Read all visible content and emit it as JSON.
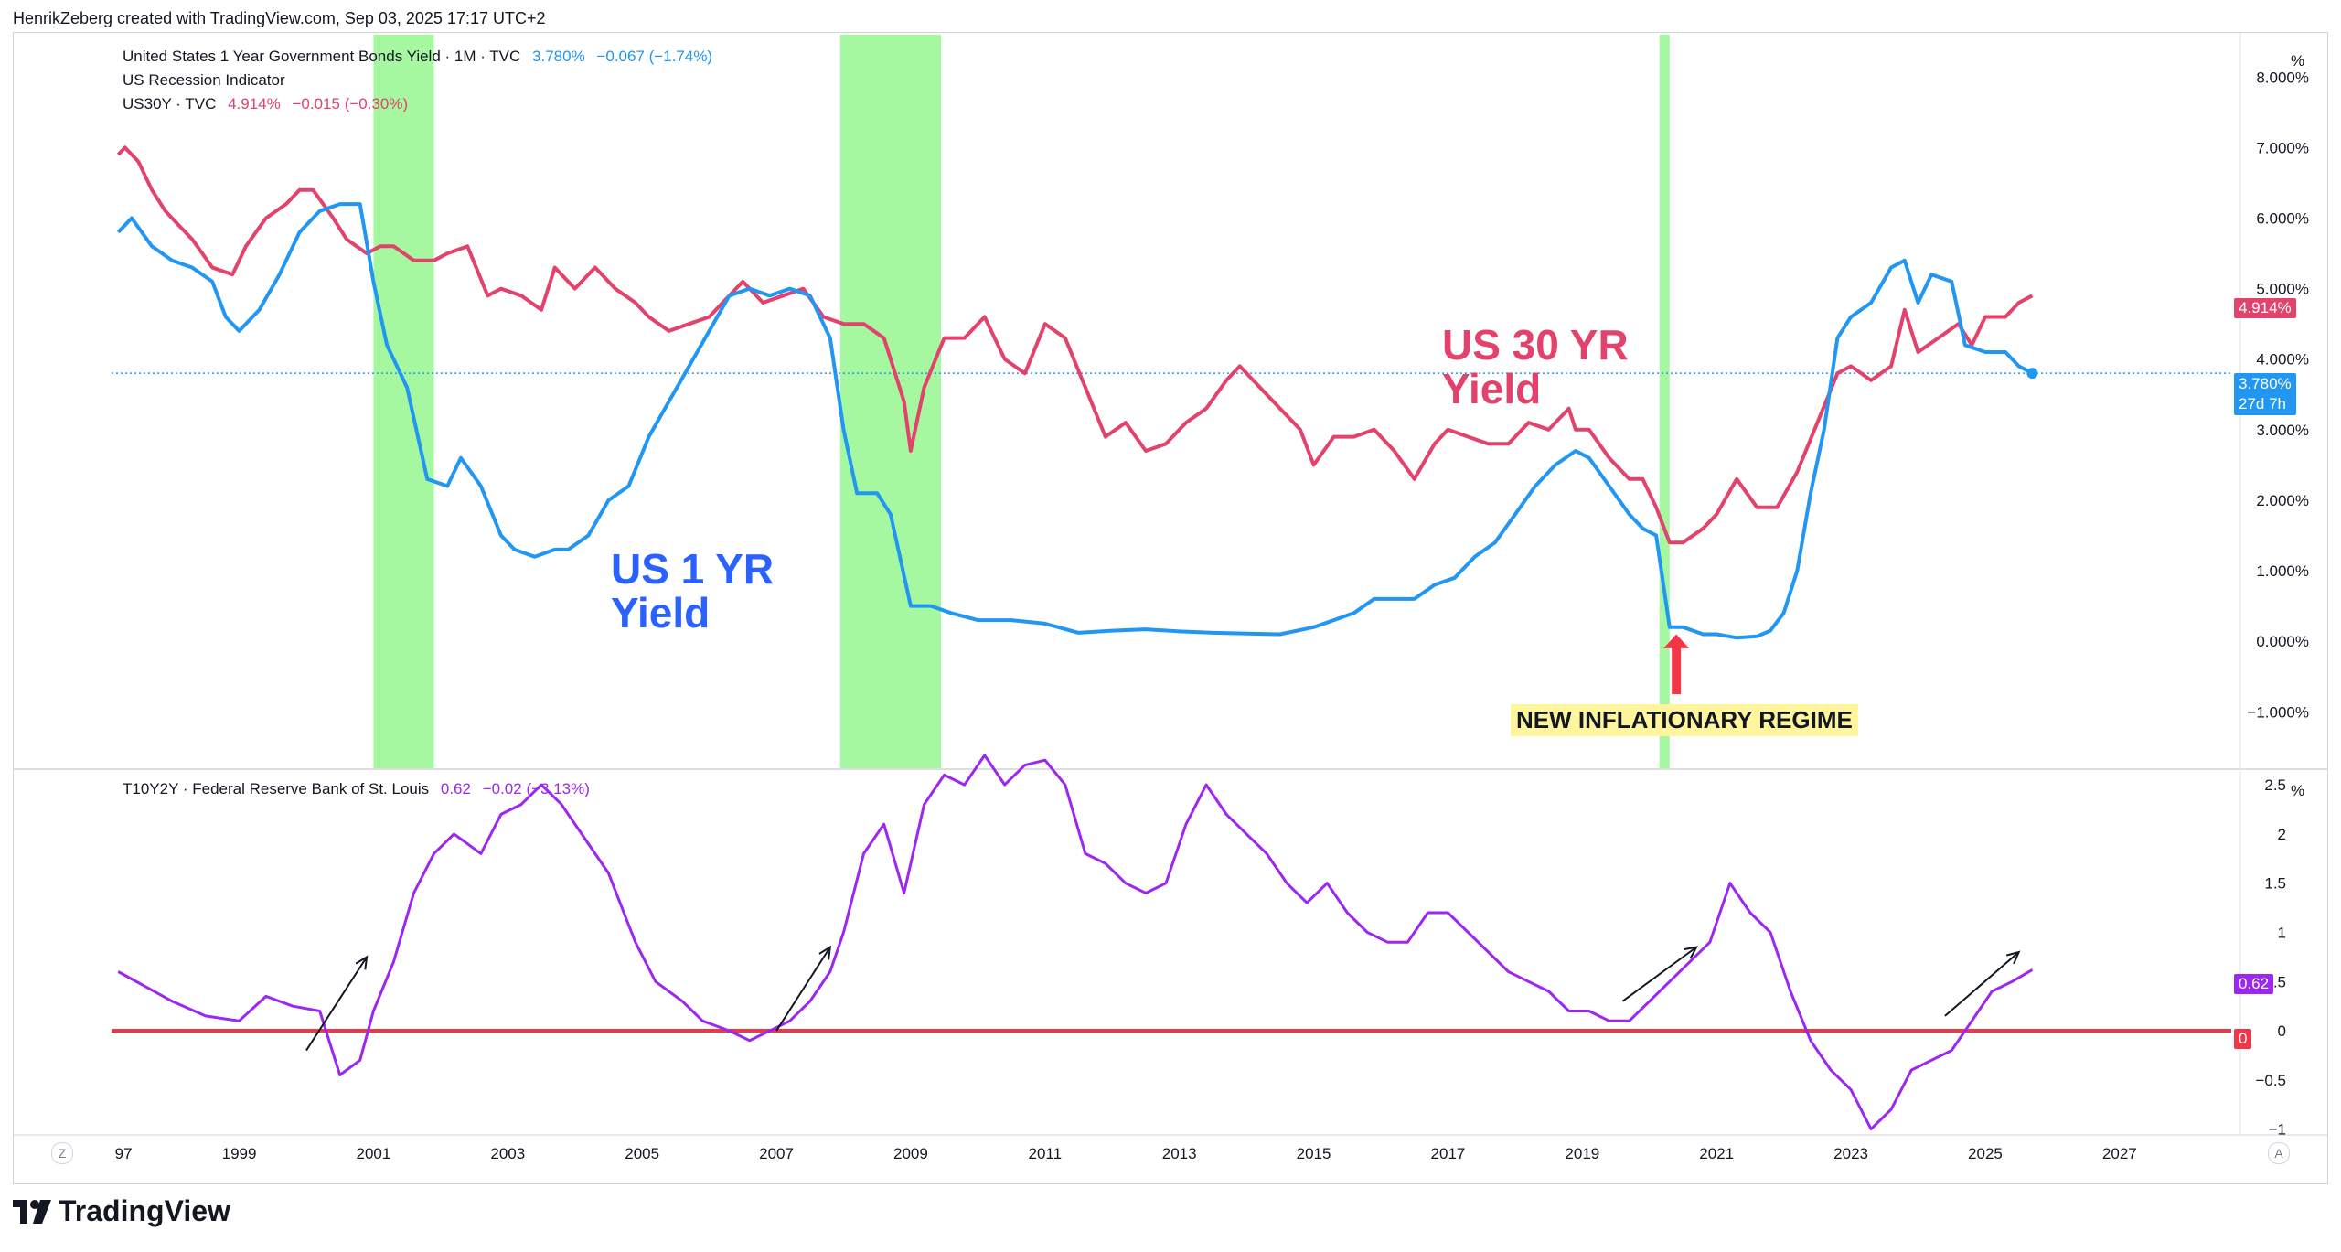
{
  "header": "HenrikZeberg created with TradingView.com, Sep 03, 2025 17:17 UTC+2",
  "top_legend": {
    "line1_name": "United States 1 Year Government Bonds Yield · 1M · TVC",
    "line1_value": "3.780%",
    "line1_change": "−0.067 (−1.74%)",
    "line2_name": "US Recession Indicator",
    "line3_name": "US30Y · TVC",
    "line3_value": "4.914%",
    "line3_change": "−0.015 (−0.30%)"
  },
  "bottom_legend": {
    "name": "T10Y2Y · Federal Reserve Bank of St. Louis",
    "value": "0.62",
    "change": "−0.02 (−3.13%)"
  },
  "annotations": {
    "us1yr_line1": "US 1 YR",
    "us1yr_line2": "Yield",
    "us30yr_line1": "US 30 YR",
    "us30yr_line2": "Yield",
    "regime": "NEW INFLATIONARY REGIME"
  },
  "badges": {
    "us30y": "4.914%",
    "us1y": "3.780%",
    "us1y_countdown": "27d 7h",
    "spread": "0.62",
    "zero": "0"
  },
  "footer": {
    "brand": "TradingView"
  },
  "corners": {
    "left": "Z",
    "right": "A"
  },
  "colors": {
    "us1y": "#2196f3",
    "us30y": "#e2426b",
    "spread": "#9c27f0",
    "recession": "#a5f8a0",
    "zero_line": "#f23645",
    "arrow_red": "#f23645"
  },
  "chart_data": [
    {
      "type": "line",
      "title": "",
      "ylabel": "%",
      "y_ticks": [
        "8.000%",
        "7.000%",
        "6.000%",
        "5.000%",
        "4.000%",
        "3.000%",
        "2.000%",
        "1.000%",
        "0.000%",
        "−1.000%"
      ],
      "x_ticks": [
        "97",
        "1999",
        "2001",
        "2003",
        "2005",
        "2007",
        "2009",
        "2011",
        "2013",
        "2015",
        "2017",
        "2019",
        "2021",
        "2023",
        "2025",
        "2027"
      ],
      "ylim": [
        -1.8,
        8.6
      ],
      "xlim": [
        1997.1,
        2028.5
      ],
      "recessions": [
        [
          2001.0,
          2001.9
        ],
        [
          2007.95,
          2009.45
        ],
        [
          2020.15,
          2020.3
        ]
      ],
      "series": [
        {
          "name": "US30Y",
          "x": [
            1997.2,
            1997.3,
            1997.5,
            1997.7,
            1997.9,
            1998.1,
            1998.3,
            1998.6,
            1998.9,
            1999.1,
            1999.4,
            1999.7,
            1999.9,
            2000.1,
            2000.4,
            2000.6,
            2000.9,
            2001.1,
            2001.3,
            2001.6,
            2001.9,
            2002.1,
            2002.4,
            2002.7,
            2002.9,
            2003.2,
            2003.5,
            2003.7,
            2004.0,
            2004.3,
            2004.6,
            2004.9,
            2005.1,
            2005.4,
            2005.7,
            2006.0,
            2006.3,
            2006.5,
            2006.8,
            2007.1,
            2007.4,
            2007.7,
            2008.0,
            2008.3,
            2008.6,
            2008.9,
            2009.0,
            2009.2,
            2009.5,
            2009.8,
            2010.1,
            2010.4,
            2010.7,
            2011.0,
            2011.3,
            2011.6,
            2011.9,
            2012.2,
            2012.5,
            2012.8,
            2013.1,
            2013.4,
            2013.7,
            2013.9,
            2014.2,
            2014.5,
            2014.8,
            2015.0,
            2015.3,
            2015.6,
            2015.9,
            2016.2,
            2016.5,
            2016.8,
            2017.0,
            2017.3,
            2017.6,
            2017.9,
            2018.2,
            2018.5,
            2018.8,
            2018.9,
            2019.1,
            2019.4,
            2019.7,
            2019.9,
            2020.1,
            2020.3,
            2020.5,
            2020.8,
            2021.0,
            2021.3,
            2021.6,
            2021.9,
            2022.2,
            2022.5,
            2022.8,
            2023.0,
            2023.3,
            2023.6,
            2023.8,
            2024.0,
            2024.3,
            2024.6,
            2024.8,
            2025.0,
            2025.3,
            2025.5,
            2025.7
          ],
          "y": [
            6.9,
            7.0,
            6.8,
            6.4,
            6.1,
            5.9,
            5.7,
            5.3,
            5.2,
            5.6,
            6.0,
            6.2,
            6.4,
            6.4,
            6.0,
            5.7,
            5.5,
            5.6,
            5.6,
            5.4,
            5.4,
            5.5,
            5.6,
            4.9,
            5.0,
            4.9,
            4.7,
            5.3,
            5.0,
            5.3,
            5.0,
            4.8,
            4.6,
            4.4,
            4.5,
            4.6,
            4.9,
            5.1,
            4.8,
            4.9,
            5.0,
            4.6,
            4.5,
            4.5,
            4.3,
            3.4,
            2.7,
            3.6,
            4.3,
            4.3,
            4.6,
            4.0,
            3.8,
            4.5,
            4.3,
            3.6,
            2.9,
            3.1,
            2.7,
            2.8,
            3.1,
            3.3,
            3.7,
            3.9,
            3.6,
            3.3,
            3.0,
            2.5,
            2.9,
            2.9,
            3.0,
            2.7,
            2.3,
            2.8,
            3.0,
            2.9,
            2.8,
            2.8,
            3.1,
            3.0,
            3.3,
            3.0,
            3.0,
            2.6,
            2.3,
            2.3,
            1.9,
            1.4,
            1.4,
            1.6,
            1.8,
            2.3,
            1.9,
            1.9,
            2.4,
            3.1,
            3.8,
            3.9,
            3.7,
            3.9,
            4.7,
            4.1,
            4.3,
            4.5,
            4.2,
            4.6,
            4.6,
            4.8,
            4.9
          ]
        },
        {
          "name": "United States 1 Year Government Bonds Yield",
          "x": [
            1997.2,
            1997.4,
            1997.7,
            1998.0,
            1998.3,
            1998.6,
            1998.8,
            1999.0,
            1999.3,
            1999.6,
            1999.9,
            2000.2,
            2000.5,
            2000.8,
            2001.0,
            2001.2,
            2001.5,
            2001.8,
            2002.1,
            2002.3,
            2002.6,
            2002.9,
            2003.1,
            2003.4,
            2003.7,
            2003.9,
            2004.2,
            2004.5,
            2004.8,
            2005.1,
            2005.4,
            2005.7,
            2006.0,
            2006.3,
            2006.6,
            2006.9,
            2007.2,
            2007.5,
            2007.8,
            2008.0,
            2008.2,
            2008.5,
            2008.7,
            2009.0,
            2009.3,
            2009.6,
            2010.0,
            2010.5,
            2011.0,
            2011.5,
            2012.0,
            2012.5,
            2013.0,
            2013.5,
            2014.0,
            2014.5,
            2015.0,
            2015.3,
            2015.6,
            2015.9,
            2016.2,
            2016.5,
            2016.8,
            2017.1,
            2017.4,
            2017.7,
            2018.0,
            2018.3,
            2018.6,
            2018.9,
            2019.1,
            2019.4,
            2019.7,
            2019.9,
            2020.1,
            2020.3,
            2020.5,
            2020.8,
            2021.0,
            2021.3,
            2021.6,
            2021.8,
            2022.0,
            2022.2,
            2022.4,
            2022.6,
            2022.8,
            2023.0,
            2023.3,
            2023.6,
            2023.8,
            2024.0,
            2024.2,
            2024.5,
            2024.7,
            2025.0,
            2025.3,
            2025.5,
            2025.7
          ],
          "y": [
            5.8,
            6.0,
            5.6,
            5.4,
            5.3,
            5.1,
            4.6,
            4.4,
            4.7,
            5.2,
            5.8,
            6.1,
            6.2,
            6.2,
            5.1,
            4.2,
            3.6,
            2.3,
            2.2,
            2.6,
            2.2,
            1.5,
            1.3,
            1.2,
            1.3,
            1.3,
            1.5,
            2.0,
            2.2,
            2.9,
            3.4,
            3.9,
            4.4,
            4.9,
            5.0,
            4.9,
            5.0,
            4.9,
            4.3,
            3.0,
            2.1,
            2.1,
            1.8,
            0.5,
            0.5,
            0.4,
            0.3,
            0.3,
            0.25,
            0.12,
            0.15,
            0.17,
            0.14,
            0.12,
            0.11,
            0.1,
            0.2,
            0.3,
            0.4,
            0.6,
            0.6,
            0.6,
            0.8,
            0.9,
            1.2,
            1.4,
            1.8,
            2.2,
            2.5,
            2.7,
            2.6,
            2.2,
            1.8,
            1.6,
            1.5,
            0.2,
            0.2,
            0.1,
            0.1,
            0.05,
            0.07,
            0.15,
            0.4,
            1.0,
            2.1,
            3.0,
            4.3,
            4.6,
            4.8,
            5.3,
            5.4,
            4.8,
            5.2,
            5.1,
            4.2,
            4.1,
            4.1,
            3.9,
            3.8
          ]
        }
      ]
    },
    {
      "type": "line",
      "title": "",
      "ylabel": "%",
      "y_ticks": [
        "2.5",
        "2",
        "1.5",
        "1",
        "0.5",
        "0",
        "−0.5",
        "−1"
      ],
      "ylim": [
        -1.05,
        2.65
      ],
      "xlim": [
        1997.1,
        2028.5
      ],
      "reference_line": 0,
      "series": [
        {
          "name": "T10Y2Y",
          "x": [
            1997.2,
            1997.6,
            1998.0,
            1998.5,
            1999.0,
            1999.4,
            1999.8,
            2000.2,
            2000.5,
            2000.8,
            2001.0,
            2001.3,
            2001.6,
            2001.9,
            2002.2,
            2002.6,
            2002.9,
            2003.2,
            2003.5,
            2003.8,
            2004.1,
            2004.5,
            2004.9,
            2005.2,
            2005.6,
            2005.9,
            2006.3,
            2006.6,
            2006.9,
            2007.2,
            2007.5,
            2007.8,
            2008.0,
            2008.3,
            2008.6,
            2008.9,
            2009.2,
            2009.5,
            2009.8,
            2010.1,
            2010.4,
            2010.7,
            2011.0,
            2011.3,
            2011.6,
            2011.9,
            2012.2,
            2012.5,
            2012.8,
            2013.1,
            2013.4,
            2013.7,
            2014.0,
            2014.3,
            2014.6,
            2014.9,
            2015.2,
            2015.5,
            2015.8,
            2016.1,
            2016.4,
            2016.7,
            2017.0,
            2017.3,
            2017.6,
            2017.9,
            2018.2,
            2018.5,
            2018.8,
            2019.1,
            2019.4,
            2019.7,
            2020.0,
            2020.3,
            2020.6,
            2020.9,
            2021.2,
            2021.5,
            2021.8,
            2022.1,
            2022.4,
            2022.7,
            2023.0,
            2023.3,
            2023.6,
            2023.9,
            2024.2,
            2024.5,
            2024.8,
            2025.1,
            2025.4,
            2025.7
          ],
          "y": [
            0.6,
            0.45,
            0.3,
            0.15,
            0.1,
            0.35,
            0.25,
            0.2,
            -0.45,
            -0.3,
            0.2,
            0.7,
            1.4,
            1.8,
            2.0,
            1.8,
            2.2,
            2.3,
            2.5,
            2.3,
            2.0,
            1.6,
            0.9,
            0.5,
            0.3,
            0.1,
            0.0,
            -0.1,
            0.0,
            0.1,
            0.3,
            0.6,
            1.0,
            1.8,
            2.1,
            1.4,
            2.3,
            2.6,
            2.5,
            2.8,
            2.5,
            2.7,
            2.75,
            2.5,
            1.8,
            1.7,
            1.5,
            1.4,
            1.5,
            2.1,
            2.5,
            2.2,
            2.0,
            1.8,
            1.5,
            1.3,
            1.5,
            1.2,
            1.0,
            0.9,
            0.9,
            1.2,
            1.2,
            1.0,
            0.8,
            0.6,
            0.5,
            0.4,
            0.2,
            0.2,
            0.1,
            0.1,
            0.3,
            0.5,
            0.7,
            0.9,
            1.5,
            1.2,
            1.0,
            0.4,
            -0.1,
            -0.4,
            -0.6,
            -1.0,
            -0.8,
            -0.4,
            -0.3,
            -0.2,
            0.1,
            0.4,
            0.5,
            0.62
          ]
        }
      ]
    }
  ]
}
